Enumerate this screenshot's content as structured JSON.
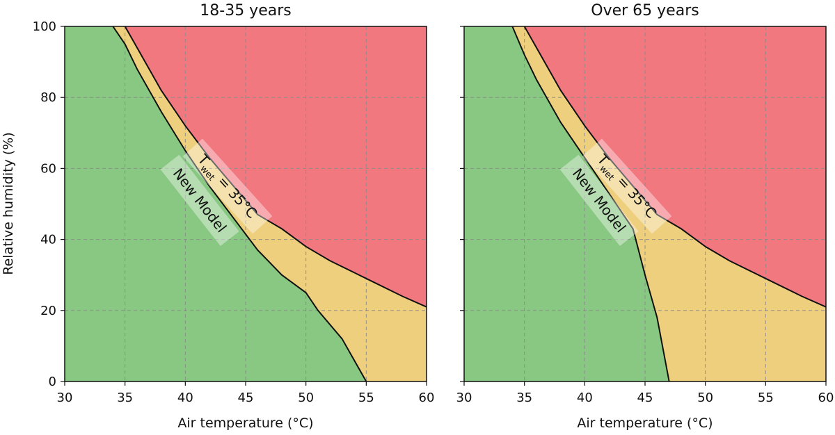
{
  "chart_data": [
    {
      "type": "area",
      "title": "18-35 years",
      "xlabel": "Air temperature (°C)",
      "ylabel": "Relative humidity (%)",
      "xlim": [
        30,
        60
      ],
      "ylim": [
        0,
        100
      ],
      "xticks": [
        30,
        35,
        40,
        45,
        50,
        55,
        60
      ],
      "yticks": [
        0,
        20,
        40,
        60,
        80,
        100
      ],
      "grid": true,
      "colors": {
        "safe": "#89c882",
        "caution": "#eecf7d",
        "danger": "#f27880"
      },
      "curves": {
        "new_model": {
          "x": [
            34.0,
            35.0,
            36.0,
            38.0,
            40.0,
            42.0,
            44.0,
            46.0,
            48.0,
            50.0,
            51.0,
            53.0,
            55.0
          ],
          "y": [
            100,
            95,
            88,
            76,
            65,
            55,
            46,
            37,
            30,
            25,
            20,
            12,
            0
          ]
        },
        "twet_35": {
          "x": [
            35.0,
            36.0,
            38.0,
            40.0,
            42.0,
            44.0,
            46.0,
            48.0,
            50.0,
            52.0,
            55.0,
            58.0,
            60.0
          ],
          "y": [
            100,
            94,
            82,
            72,
            63,
            55,
            47,
            43,
            38,
            34,
            29,
            24,
            21
          ]
        }
      },
      "annotations": [
        {
          "main": "T",
          "sub": "wet",
          "rest": " = 35°C"
        },
        {
          "main": "New Model"
        }
      ]
    },
    {
      "type": "area",
      "title": "Over 65 years",
      "xlabel": "Air temperature (°C)",
      "xlim": [
        30,
        60
      ],
      "ylim": [
        0,
        100
      ],
      "xticks": [
        30,
        35,
        40,
        45,
        50,
        55,
        60
      ],
      "yticks": [
        0,
        20,
        40,
        60,
        80,
        100
      ],
      "grid": true,
      "colors": {
        "safe": "#89c882",
        "caution": "#eecf7d",
        "danger": "#f27880"
      },
      "curves": {
        "new_model": {
          "x": [
            34.0,
            35.0,
            36.0,
            38.0,
            40.0,
            42.0,
            44.0,
            45.0,
            46.0,
            47.0
          ],
          "y": [
            100,
            92,
            85,
            73,
            63,
            53,
            43,
            30,
            18,
            0
          ]
        },
        "twet_35": {
          "x": [
            35.0,
            36.0,
            38.0,
            40.0,
            42.0,
            44.0,
            46.0,
            48.0,
            50.0,
            52.0,
            55.0,
            58.0,
            60.0
          ],
          "y": [
            100,
            94,
            82,
            72,
            63,
            55,
            47,
            43,
            38,
            34,
            29,
            24,
            21
          ]
        }
      },
      "annotations": [
        {
          "main": "T",
          "sub": "wet",
          "rest": " = 35°C"
        },
        {
          "main": "New Model"
        }
      ]
    }
  ]
}
